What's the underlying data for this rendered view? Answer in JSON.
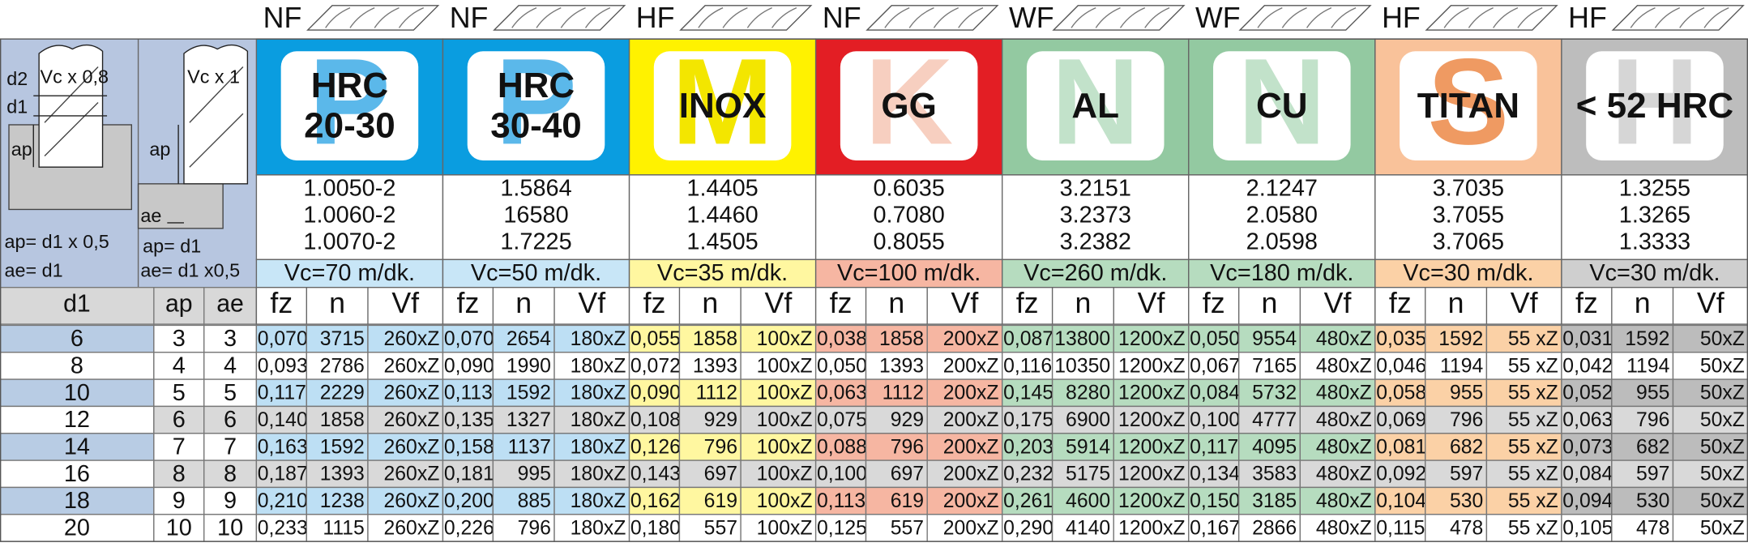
{
  "materials": [
    {
      "grade": "NF",
      "letter": "P",
      "name": [
        "HRC",
        "20-30"
      ],
      "codes": [
        "1.0050-2",
        "1.0060-2",
        "1.0070-2"
      ],
      "vc": "Vc=70 m/dk.",
      "columns": [
        "fz",
        "n",
        "Vf"
      ]
    },
    {
      "grade": "NF",
      "letter": "P",
      "name": [
        "HRC",
        "30-40"
      ],
      "codes": [
        "1.5864",
        "16580",
        "1.7225"
      ],
      "vc": "Vc=50 m/dk.",
      "columns": [
        "fz",
        "n",
        "Vf"
      ]
    },
    {
      "grade": "HF",
      "letter": "M",
      "name": [
        "INOX"
      ],
      "codes": [
        "1.4405",
        "1.4460",
        "1.4505"
      ],
      "vc": "Vc=35 m/dk.",
      "columns": [
        "fz",
        "n",
        "Vf"
      ]
    },
    {
      "grade": "NF",
      "letter": "K",
      "name": [
        "GG"
      ],
      "codes": [
        "0.6035",
        "0.7080",
        "0.8055"
      ],
      "vc": "Vc=100 m/dk.",
      "columns": [
        "fz",
        "n",
        "Vf"
      ]
    },
    {
      "grade": "WF",
      "letter": "N",
      "name": [
        "AL"
      ],
      "codes": [
        "3.2151",
        "3.2373",
        "3.2382"
      ],
      "vc": "Vc=260 m/dk.",
      "columns": [
        "fz",
        "n",
        "Vf"
      ]
    },
    {
      "grade": "WF",
      "letter": "N",
      "name": [
        "CU"
      ],
      "codes": [
        "2.1247",
        "2.0580",
        "2.0598"
      ],
      "vc": "Vc=180 m/dk.",
      "columns": [
        "fz",
        "n",
        "Vf"
      ]
    },
    {
      "grade": "HF",
      "letter": "S",
      "name": [
        "TITAN"
      ],
      "codes": [
        "3.7035",
        "3.7055",
        "3.7065"
      ],
      "vc": "Vc=30 m/dk.",
      "columns": [
        "fz",
        "n",
        "Vf"
      ]
    },
    {
      "grade": "HF",
      "letter": "H",
      "name": [
        "< 52 HRC"
      ],
      "codes": [
        "1.3255",
        "1.3265",
        "1.3333"
      ],
      "vc": "Vc=30 m/dk.",
      "columns": [
        "fz",
        "n",
        "Vf"
      ]
    }
  ],
  "diagram": {
    "left": [
      "d2",
      "Vc x 0,8",
      "d1",
      "ap",
      "ap= d1 x 0,5",
      "ae= d1"
    ],
    "right": [
      "Vc x 1",
      "ap",
      "ae",
      "ap= d1",
      "ae= d1 x0,5"
    ]
  },
  "row_header": [
    "d1",
    "ap",
    "ae"
  ],
  "rows": [
    {
      "d1": "6",
      "ap": "3",
      "ae": "3",
      "cells": [
        [
          "0,070",
          "3715",
          "260xZ"
        ],
        [
          "0,070",
          "2654",
          "180xZ"
        ],
        [
          "0,055",
          "1858",
          "100xZ"
        ],
        [
          "0,038",
          "1858",
          "200xZ"
        ],
        [
          "0,087",
          "13800",
          "1200xZ"
        ],
        [
          "0,050",
          "9554",
          "480xZ"
        ],
        [
          "0,035",
          "1592",
          "55 xZ"
        ],
        [
          "0,031",
          "1592",
          "50xZ"
        ]
      ]
    },
    {
      "d1": "8",
      "ap": "4",
      "ae": "4",
      "cells": [
        [
          "0,093",
          "2786",
          "260xZ"
        ],
        [
          "0,090",
          "1990",
          "180xZ"
        ],
        [
          "0,072",
          "1393",
          "100xZ"
        ],
        [
          "0,050",
          "1393",
          "200xZ"
        ],
        [
          "0,116",
          "10350",
          "1200xZ"
        ],
        [
          "0,067",
          "7165",
          "480xZ"
        ],
        [
          "0,046",
          "1194",
          "55 xZ"
        ],
        [
          "0,042",
          "1194",
          "50xZ"
        ]
      ]
    },
    {
      "d1": "10",
      "ap": "5",
      "ae": "5",
      "cells": [
        [
          "0,117",
          "2229",
          "260xZ"
        ],
        [
          "0,113",
          "1592",
          "180xZ"
        ],
        [
          "0,090",
          "1112",
          "100xZ"
        ],
        [
          "0,063",
          "1112",
          "200xZ"
        ],
        [
          "0,145",
          "8280",
          "1200xZ"
        ],
        [
          "0,084",
          "5732",
          "480xZ"
        ],
        [
          "0,058",
          "955",
          "55 xZ"
        ],
        [
          "0,052",
          "955",
          "50xZ"
        ]
      ]
    },
    {
      "d1": "12",
      "ap": "6",
      "ae": "6",
      "cells": [
        [
          "0,140",
          "1858",
          "260xZ"
        ],
        [
          "0,135",
          "1327",
          "180xZ"
        ],
        [
          "0,108",
          "929",
          "100xZ"
        ],
        [
          "0,075",
          "929",
          "200xZ"
        ],
        [
          "0,175",
          "6900",
          "1200xZ"
        ],
        [
          "0,100",
          "4777",
          "480xZ"
        ],
        [
          "0,069",
          "796",
          "55 xZ"
        ],
        [
          "0,063",
          "796",
          "50xZ"
        ]
      ]
    },
    {
      "d1": "14",
      "ap": "7",
      "ae": "7",
      "cells": [
        [
          "0,163",
          "1592",
          "260xZ"
        ],
        [
          "0,158",
          "1137",
          "180xZ"
        ],
        [
          "0,126",
          "796",
          "100xZ"
        ],
        [
          "0,088",
          "796",
          "200xZ"
        ],
        [
          "0,203",
          "5914",
          "1200xZ"
        ],
        [
          "0,117",
          "4095",
          "480xZ"
        ],
        [
          "0,081",
          "682",
          "55 xZ"
        ],
        [
          "0,073",
          "682",
          "50xZ"
        ]
      ]
    },
    {
      "d1": "16",
      "ap": "8",
      "ae": "8",
      "cells": [
        [
          "0,187",
          "1393",
          "260xZ"
        ],
        [
          "0,181",
          "995",
          "180xZ"
        ],
        [
          "0,143",
          "697",
          "100xZ"
        ],
        [
          "0,100",
          "697",
          "200xZ"
        ],
        [
          "0,232",
          "5175",
          "1200xZ"
        ],
        [
          "0,134",
          "3583",
          "480xZ"
        ],
        [
          "0,092",
          "597",
          "55 xZ"
        ],
        [
          "0,084",
          "597",
          "50xZ"
        ]
      ]
    },
    {
      "d1": "18",
      "ap": "9",
      "ae": "9",
      "cells": [
        [
          "0,210",
          "1238",
          "260xZ"
        ],
        [
          "0,200",
          "885",
          "180xZ"
        ],
        [
          "0,162",
          "619",
          "100xZ"
        ],
        [
          "0,113",
          "619",
          "200xZ"
        ],
        [
          "0,261",
          "4600",
          "1200xZ"
        ],
        [
          "0,150",
          "3185",
          "480xZ"
        ],
        [
          "0,104",
          "530",
          "55 xZ"
        ],
        [
          "0,094",
          "530",
          "50xZ"
        ]
      ]
    },
    {
      "d1": "20",
      "ap": "10",
      "ae": "10",
      "cells": [
        [
          "0,233",
          "1115",
          "260xZ"
        ],
        [
          "0,226",
          "796",
          "180xZ"
        ],
        [
          "0,180",
          "557",
          "100xZ"
        ],
        [
          "0,125",
          "557",
          "200xZ"
        ],
        [
          "0,290",
          "4140",
          "1200xZ"
        ],
        [
          "0,167",
          "2866",
          "480xZ"
        ],
        [
          "0,115",
          "478",
          "55 xZ"
        ],
        [
          "0,105",
          "478",
          "50xZ"
        ]
      ]
    }
  ]
}
